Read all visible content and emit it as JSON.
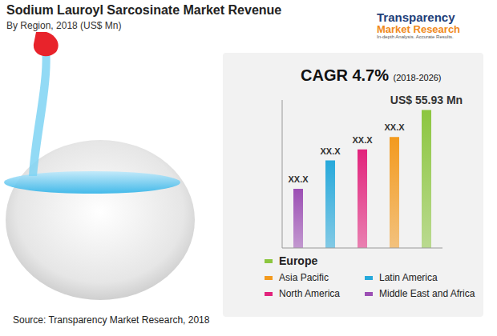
{
  "chart_data": {
    "type": "bar",
    "title": "Sodium Lauroyl Sarcosinate Market Revenue",
    "subtitle": "By Region, 2018 (US$ Mn)",
    "annotations": [
      "CAGR 4.7%",
      "(2018-2026)"
    ],
    "source": "Source: Transparency Market Research, 2018",
    "logo": [
      "Transparency",
      "Market Research",
      "In-depth Analysis. Accurate Results."
    ],
    "categories": [
      "Middle East and Africa",
      "Latin America",
      "North America",
      "Asia Pacific",
      "Europe"
    ],
    "values": [
      24,
      35.5,
      40,
      45,
      55.93
    ],
    "value_labels": [
      "XX.X",
      "XX.X",
      "XX.X",
      "XX.X",
      "US$ 55.93 Mn"
    ],
    "colors": [
      "#9c4fb4",
      "#27a9db",
      "#e2237c",
      "#f39a1e",
      "#8cc63f"
    ],
    "ylim": [
      0,
      60
    ],
    "yticks": [],
    "tick_labels": false,
    "data_labels": true,
    "legend": "bottom",
    "grid": false
  }
}
